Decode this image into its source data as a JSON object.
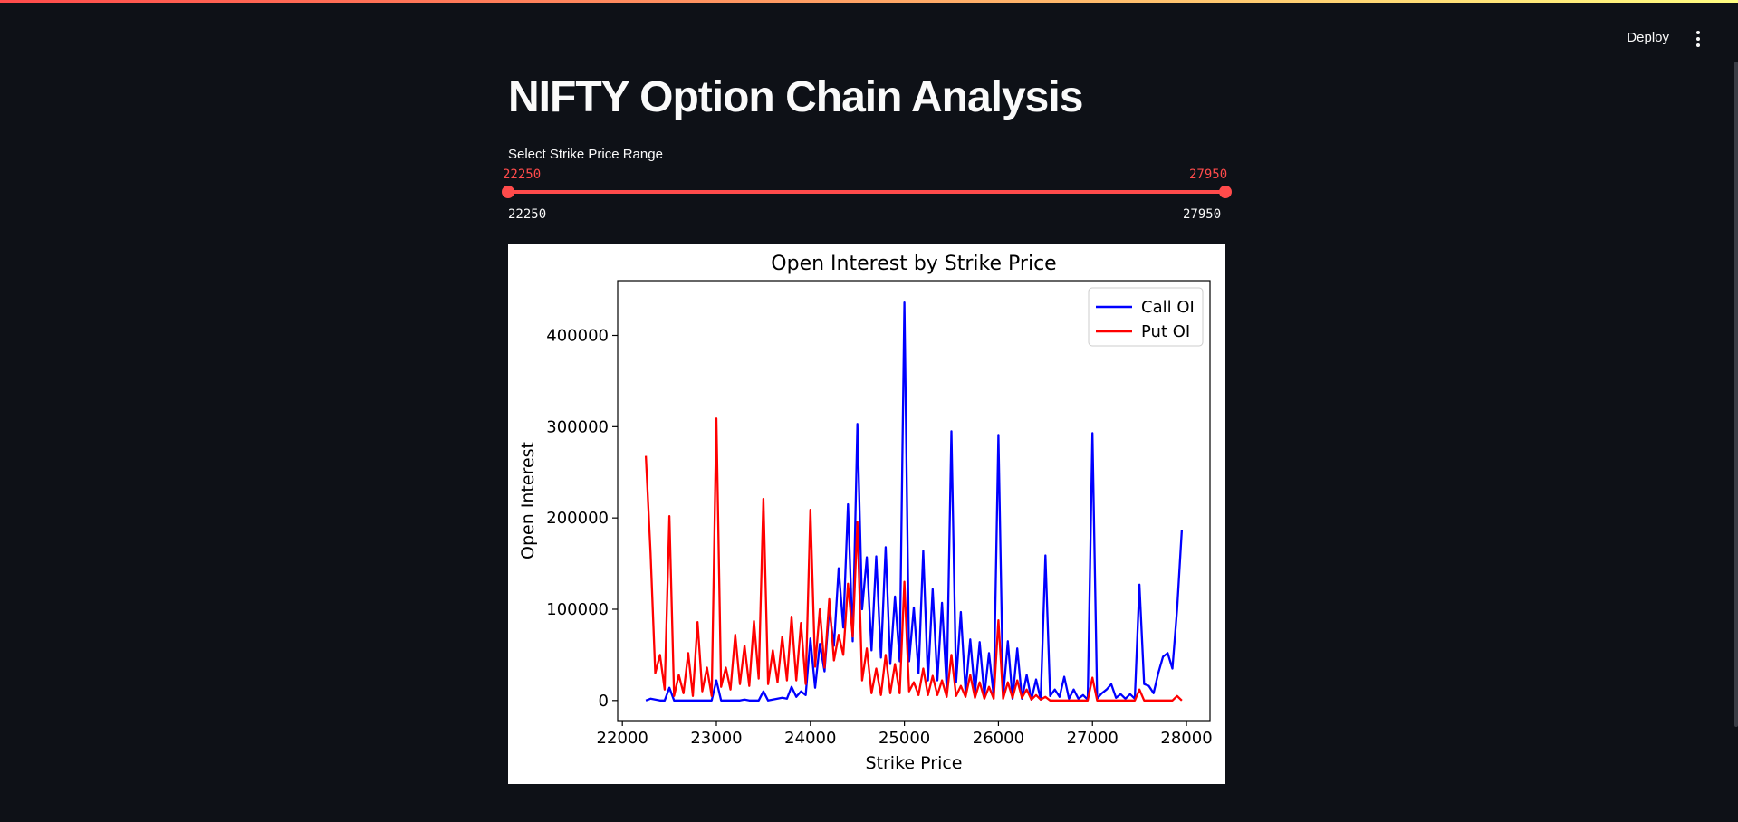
{
  "header": {
    "deploy_label": "Deploy",
    "menu_icon": "vertical-ellipsis-icon"
  },
  "page": {
    "title": "NIFTY Option Chain Analysis"
  },
  "slider": {
    "label": "Select Strike Price Range",
    "selected_min": "22250",
    "selected_max": "27950",
    "bound_min": "22250",
    "bound_max": "27950",
    "accent_color": "#ff4b4b"
  },
  "chart_data": {
    "type": "line",
    "title": "Open Interest by Strike Price",
    "xlabel": "Strike Price",
    "ylabel": "Open Interest",
    "xlim": [
      21950,
      28250
    ],
    "ylim": [
      -22000,
      460000
    ],
    "xticks": [
      22000,
      23000,
      24000,
      25000,
      26000,
      27000,
      28000
    ],
    "yticks": [
      0,
      100000,
      200000,
      300000,
      400000
    ],
    "grid": false,
    "legend_position": "top-right",
    "series": [
      {
        "name": "Call OI",
        "color": "#0000ff",
        "points": [
          [
            22250,
            0
          ],
          [
            22300,
            2000
          ],
          [
            22350,
            1000
          ],
          [
            22400,
            0
          ],
          [
            22450,
            0
          ],
          [
            22500,
            14000
          ],
          [
            22550,
            0
          ],
          [
            22600,
            0
          ],
          [
            22650,
            0
          ],
          [
            22700,
            0
          ],
          [
            22750,
            0
          ],
          [
            22800,
            0
          ],
          [
            22850,
            0
          ],
          [
            22900,
            0
          ],
          [
            22950,
            0
          ],
          [
            23000,
            22000
          ],
          [
            23050,
            0
          ],
          [
            23100,
            0
          ],
          [
            23150,
            0
          ],
          [
            23200,
            0
          ],
          [
            23250,
            0
          ],
          [
            23300,
            1000
          ],
          [
            23350,
            0
          ],
          [
            23400,
            0
          ],
          [
            23450,
            0
          ],
          [
            23500,
            10000
          ],
          [
            23550,
            0
          ],
          [
            23600,
            1000
          ],
          [
            23650,
            2000
          ],
          [
            23700,
            3000
          ],
          [
            23750,
            2000
          ],
          [
            23800,
            15000
          ],
          [
            23850,
            4000
          ],
          [
            23900,
            10000
          ],
          [
            23950,
            6000
          ],
          [
            24000,
            68000
          ],
          [
            24050,
            14000
          ],
          [
            24100,
            62000
          ],
          [
            24150,
            32000
          ],
          [
            24200,
            100000
          ],
          [
            24250,
            60000
          ],
          [
            24300,
            145000
          ],
          [
            24350,
            80000
          ],
          [
            24400,
            215000
          ],
          [
            24450,
            65000
          ],
          [
            24500,
            303000
          ],
          [
            24550,
            100000
          ],
          [
            24600,
            157000
          ],
          [
            24650,
            55000
          ],
          [
            24700,
            158000
          ],
          [
            24750,
            47000
          ],
          [
            24800,
            168000
          ],
          [
            24850,
            40000
          ],
          [
            24900,
            114000
          ],
          [
            24950,
            43000
          ],
          [
            25000,
            436000
          ],
          [
            25050,
            43000
          ],
          [
            25100,
            102000
          ],
          [
            25150,
            30000
          ],
          [
            25200,
            164000
          ],
          [
            25250,
            22000
          ],
          [
            25300,
            122000
          ],
          [
            25350,
            22000
          ],
          [
            25400,
            107000
          ],
          [
            25450,
            14000
          ],
          [
            25500,
            295000
          ],
          [
            25550,
            20000
          ],
          [
            25600,
            97000
          ],
          [
            25650,
            10000
          ],
          [
            25700,
            67000
          ],
          [
            25750,
            8000
          ],
          [
            25800,
            64000
          ],
          [
            25850,
            6000
          ],
          [
            25900,
            52000
          ],
          [
            25950,
            5000
          ],
          [
            26000,
            291000
          ],
          [
            26050,
            4000
          ],
          [
            26100,
            65000
          ],
          [
            26150,
            2000
          ],
          [
            26200,
            57000
          ],
          [
            26250,
            2000
          ],
          [
            26300,
            28000
          ],
          [
            26350,
            1000
          ],
          [
            26400,
            23000
          ],
          [
            26450,
            1000
          ],
          [
            26500,
            159000
          ],
          [
            26550,
            5000
          ],
          [
            26600,
            12000
          ],
          [
            26650,
            4000
          ],
          [
            26700,
            26000
          ],
          [
            26750,
            2000
          ],
          [
            26800,
            12000
          ],
          [
            26850,
            2000
          ],
          [
            26900,
            6000
          ],
          [
            26950,
            1000
          ],
          [
            27000,
            293000
          ],
          [
            27050,
            2000
          ],
          [
            27100,
            8000
          ],
          [
            27150,
            12000
          ],
          [
            27200,
            18000
          ],
          [
            27250,
            3000
          ],
          [
            27300,
            7000
          ],
          [
            27350,
            2000
          ],
          [
            27400,
            7000
          ],
          [
            27450,
            2000
          ],
          [
            27500,
            127000
          ],
          [
            27550,
            18000
          ],
          [
            27600,
            16000
          ],
          [
            27650,
            8000
          ],
          [
            27700,
            30000
          ],
          [
            27750,
            48000
          ],
          [
            27800,
            52000
          ],
          [
            27850,
            35000
          ],
          [
            27900,
            100000
          ],
          [
            27950,
            187000
          ]
        ]
      },
      {
        "name": "Put OI",
        "color": "#ff0000",
        "points": [
          [
            22250,
            268000
          ],
          [
            22300,
            162000
          ],
          [
            22350,
            30000
          ],
          [
            22400,
            50000
          ],
          [
            22450,
            12000
          ],
          [
            22500,
            202000
          ],
          [
            22550,
            5000
          ],
          [
            22600,
            28000
          ],
          [
            22650,
            8000
          ],
          [
            22700,
            52000
          ],
          [
            22750,
            5000
          ],
          [
            22800,
            86000
          ],
          [
            22850,
            10000
          ],
          [
            22900,
            36000
          ],
          [
            22950,
            5000
          ],
          [
            23000,
            309000
          ],
          [
            23050,
            15000
          ],
          [
            23100,
            36000
          ],
          [
            23150,
            12000
          ],
          [
            23200,
            72000
          ],
          [
            23250,
            18000
          ],
          [
            23300,
            60000
          ],
          [
            23350,
            16000
          ],
          [
            23400,
            87000
          ],
          [
            23450,
            24000
          ],
          [
            23500,
            221000
          ],
          [
            23550,
            18000
          ],
          [
            23600,
            55000
          ],
          [
            23650,
            20000
          ],
          [
            23700,
            70000
          ],
          [
            23750,
            22000
          ],
          [
            23800,
            92000
          ],
          [
            23850,
            22000
          ],
          [
            23900,
            85000
          ],
          [
            23950,
            18000
          ],
          [
            24000,
            209000
          ],
          [
            24050,
            37000
          ],
          [
            24100,
            100000
          ],
          [
            24150,
            36000
          ],
          [
            24200,
            111000
          ],
          [
            24250,
            44000
          ],
          [
            24300,
            72000
          ],
          [
            24350,
            50000
          ],
          [
            24400,
            128000
          ],
          [
            24450,
            70000
          ],
          [
            24500,
            196000
          ],
          [
            24550,
            22000
          ],
          [
            24600,
            57000
          ],
          [
            24650,
            8000
          ],
          [
            24700,
            35000
          ],
          [
            24750,
            6000
          ],
          [
            24800,
            50000
          ],
          [
            24850,
            8000
          ],
          [
            24900,
            40000
          ],
          [
            24950,
            8000
          ],
          [
            25000,
            130000
          ],
          [
            25050,
            10000
          ],
          [
            25100,
            20000
          ],
          [
            25150,
            6000
          ],
          [
            25200,
            35000
          ],
          [
            25250,
            6000
          ],
          [
            25300,
            27000
          ],
          [
            25350,
            6000
          ],
          [
            25400,
            22000
          ],
          [
            25450,
            4000
          ],
          [
            25500,
            50000
          ],
          [
            25550,
            5000
          ],
          [
            25600,
            16000
          ],
          [
            25650,
            4000
          ],
          [
            25700,
            28000
          ],
          [
            25750,
            3000
          ],
          [
            25800,
            20000
          ],
          [
            25850,
            2000
          ],
          [
            25900,
            15000
          ],
          [
            25950,
            2000
          ],
          [
            26000,
            88000
          ],
          [
            26050,
            2000
          ],
          [
            26100,
            20000
          ],
          [
            26150,
            3000
          ],
          [
            26200,
            22000
          ],
          [
            26250,
            3000
          ],
          [
            26300,
            12000
          ],
          [
            26350,
            1000
          ],
          [
            26400,
            6000
          ],
          [
            26450,
            1000
          ],
          [
            26500,
            4000
          ],
          [
            26550,
            0
          ],
          [
            26600,
            0
          ],
          [
            26650,
            0
          ],
          [
            26700,
            0
          ],
          [
            26750,
            0
          ],
          [
            26800,
            0
          ],
          [
            26850,
            0
          ],
          [
            26900,
            0
          ],
          [
            26950,
            0
          ],
          [
            27000,
            25000
          ],
          [
            27050,
            0
          ],
          [
            27100,
            0
          ],
          [
            27150,
            0
          ],
          [
            27200,
            0
          ],
          [
            27250,
            0
          ],
          [
            27300,
            0
          ],
          [
            27350,
            0
          ],
          [
            27400,
            0
          ],
          [
            27450,
            0
          ],
          [
            27500,
            12000
          ],
          [
            27550,
            0
          ],
          [
            27600,
            0
          ],
          [
            27650,
            0
          ],
          [
            27700,
            0
          ],
          [
            27750,
            0
          ],
          [
            27800,
            0
          ],
          [
            27850,
            0
          ],
          [
            27900,
            5000
          ],
          [
            27950,
            0
          ]
        ]
      }
    ]
  }
}
